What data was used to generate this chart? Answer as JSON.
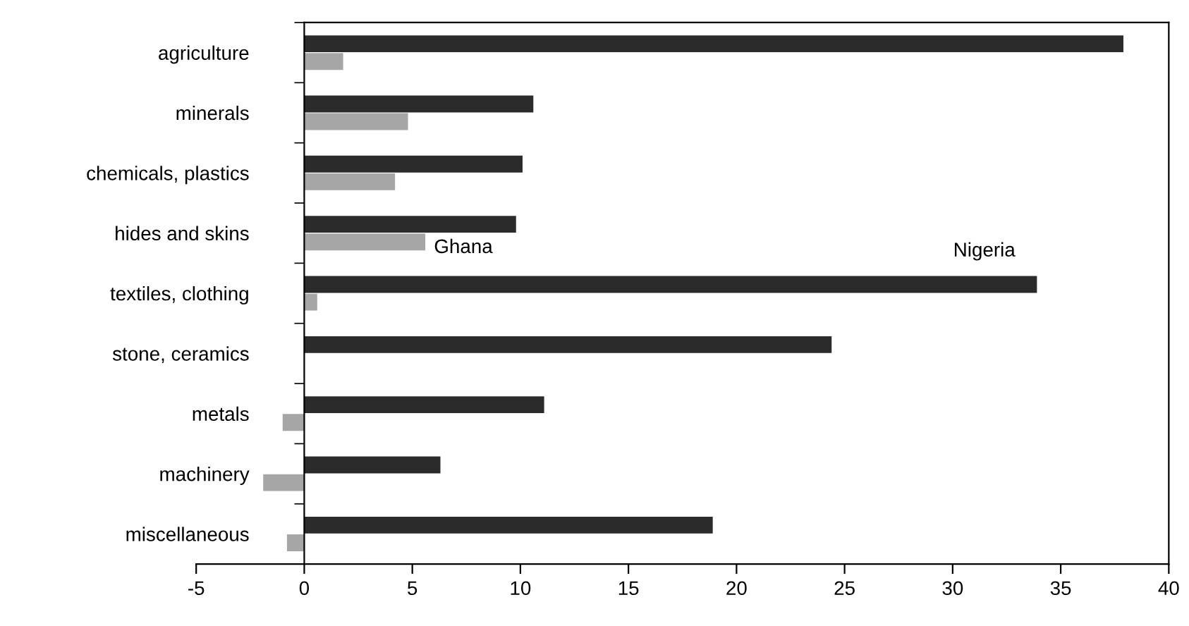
{
  "chart_data": {
    "type": "bar",
    "orientation": "horizontal",
    "categories": [
      "agriculture",
      "minerals",
      "chemicals, plastics",
      "hides and skins",
      "textiles, clothing",
      "stone, ceramics",
      "metals",
      "machinery",
      "miscellaneous"
    ],
    "series": [
      {
        "name": "Nigeria",
        "color": "#2b2b2b",
        "values": [
          37.9,
          10.6,
          10.1,
          9.8,
          33.9,
          24.4,
          11.1,
          6.3,
          18.9
        ]
      },
      {
        "name": "Ghana",
        "color": "#a6a6a6",
        "values": [
          1.8,
          4.8,
          4.2,
          5.6,
          0.6,
          0,
          -1.0,
          -1.9,
          -0.8
        ]
      }
    ],
    "xlim": [
      -5,
      40
    ],
    "xticks": [
      -5,
      0,
      5,
      10,
      15,
      20,
      25,
      30,
      35,
      40
    ],
    "legend": false
  }
}
